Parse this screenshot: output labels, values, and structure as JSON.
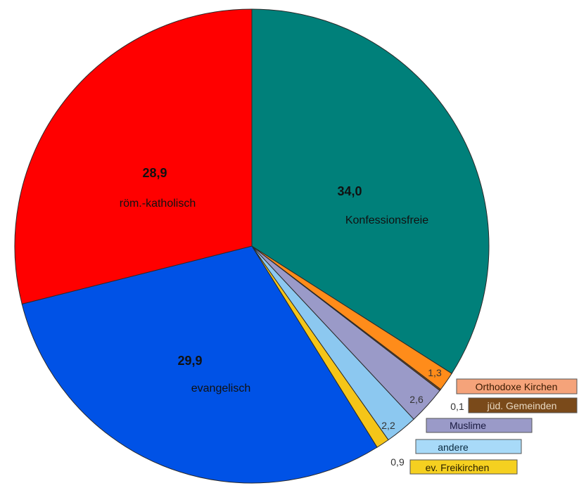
{
  "chart_data": {
    "type": "pie",
    "start_angle_deg": 0,
    "direction": "clockwise",
    "slices": [
      {
        "label": "Konfessionsfreie",
        "value": 34.0,
        "value_text": "34,0",
        "color": "#00807a",
        "legend": false
      },
      {
        "label": "Orthodoxe Kirchen",
        "value": 1.3,
        "value_text": "1,3",
        "color": "#ff8c1a",
        "legend": true,
        "legend_bg": "#f5a37a",
        "legend_fg": "#3a1a00"
      },
      {
        "label": "jüd. Gemeinden",
        "value": 0.1,
        "value_text": "0,1",
        "color": "#7a4a1a",
        "legend": true,
        "legend_bg": "#7a4a1a",
        "legend_fg": "#e8d8c0"
      },
      {
        "label": "Muslime",
        "value": 2.6,
        "value_text": "2,6",
        "color": "#9a9ac8",
        "legend": true,
        "legend_bg": "#9a9ac8",
        "legend_fg": "#1a1a40"
      },
      {
        "label": "andere",
        "value": 2.2,
        "value_text": "2,2",
        "color": "#8cc8f0",
        "legend": true,
        "legend_bg": "#a8daf8",
        "legend_fg": "#0a2a40"
      },
      {
        "label": "ev. Freikirchen",
        "value": 0.9,
        "value_text": "0,9",
        "color": "#f5c518",
        "legend": true,
        "legend_bg": "#f5d020",
        "legend_fg": "#2a2000"
      },
      {
        "label": "evangelisch",
        "value": 29.9,
        "value_text": "29,9",
        "color": "#0052e6",
        "legend": false
      },
      {
        "label": "röm.-katholisch",
        "value": 28.9,
        "value_text": "28,9",
        "color": "#ff0000",
        "legend": false
      }
    ]
  }
}
